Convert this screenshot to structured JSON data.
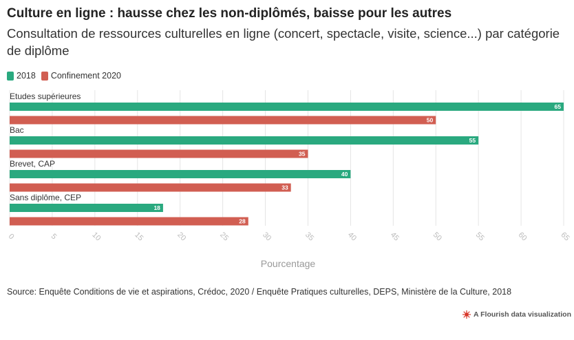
{
  "title": "Culture en ligne : hausse chez les non-diplômés, baisse pour les autres",
  "subtitle": "Consultation de ressources culturelles en ligne (concert, spectacle, visite, science...) par catégorie de diplôme",
  "source": "Source: Enquête Conditions de vie et aspirations, Crédoc, 2020 / Enquête Pratiques culturelles, DEPS, Ministère de la Culture, 2018",
  "credit": "A Flourish data visualization",
  "colors": {
    "series_2018": "#2aa97f",
    "series_2020": "#d15e52",
    "grid": "#e4e4e4",
    "tick": "#bbbbbb"
  },
  "icons": {
    "credit_logo": "flourish-logo-icon"
  },
  "chart_data": {
    "type": "bar",
    "orientation": "horizontal",
    "categories": [
      "Etudes supérieures",
      "Bac",
      "Brevet, CAP",
      "Sans diplôme, CEP"
    ],
    "series": [
      {
        "name": "2018",
        "values": [
          65,
          55,
          40,
          18
        ],
        "color": "#2aa97f"
      },
      {
        "name": "Confinement 2020",
        "values": [
          50,
          35,
          33,
          28
        ],
        "color": "#d15e52"
      }
    ],
    "xlabel": "Pourcentage",
    "ylabel": "",
    "xlim": [
      0,
      65
    ],
    "xticks": [
      0,
      5,
      10,
      15,
      20,
      25,
      30,
      35,
      40,
      45,
      50,
      55,
      60,
      65
    ],
    "data_labels": true,
    "legend_position": "top-left",
    "grid": true
  }
}
